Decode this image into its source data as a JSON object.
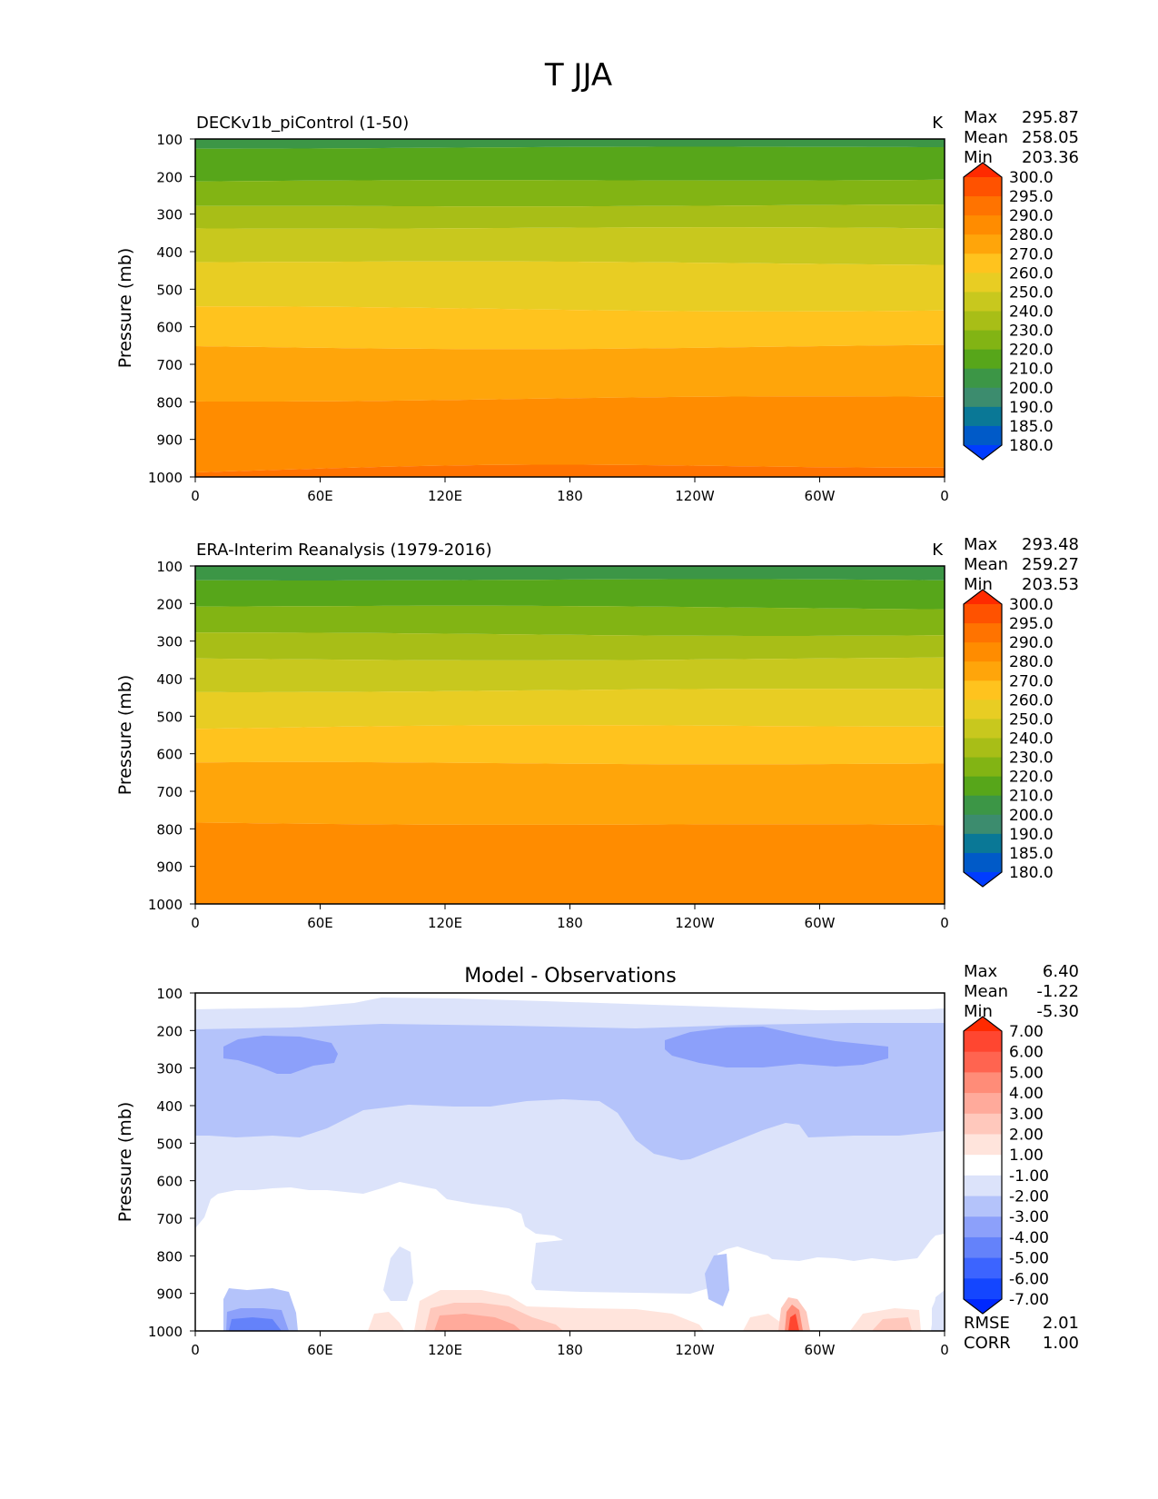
{
  "figure": {
    "title": "T JJA"
  },
  "chart_data": [
    {
      "type": "heatmap",
      "title": "DECKv1b_piControl (1-50)",
      "units": "K",
      "ylabel": "Pressure (mb)",
      "xlabel": "",
      "x_ticks": [
        "0",
        "60E",
        "120E",
        "180",
        "120W",
        "60W",
        "0"
      ],
      "x_range": [
        0,
        360
      ],
      "y_ticks": [
        "100",
        "200",
        "300",
        "400",
        "500",
        "600",
        "700",
        "800",
        "900",
        "1000"
      ],
      "y_range": [
        100,
        1000
      ],
      "y_inverted": true,
      "stats": [
        {
          "label": "Max",
          "value": "295.87"
        },
        {
          "label": "Mean",
          "value": "258.05"
        },
        {
          "label": "Min",
          "value": "203.36"
        }
      ],
      "colorbar": {
        "labels": [
          "300.0",
          "295.0",
          "290.0",
          "280.0",
          "270.0",
          "260.0",
          "250.0",
          "240.0",
          "230.0",
          "220.0",
          "210.0",
          "200.0",
          "190.0",
          "185.0",
          "180.0"
        ],
        "colors": [
          "#ff2a00",
          "#ff5200",
          "#ff7300",
          "#ff8c00",
          "#ffa50a",
          "#ffc31e",
          "#e8cd23",
          "#c8c81e",
          "#a8be17",
          "#82b414",
          "#57a61a",
          "#3c9646",
          "#3c8c6e",
          "#0a7896",
          "#005ac8",
          "#003cff"
        ]
      },
      "levels_top_to_bottom": [
        {
          "from": 100,
          "to": 120,
          "value": 205
        },
        {
          "from": 120,
          "to": 210,
          "value": 215
        },
        {
          "from": 210,
          "to": 280,
          "value": 225
        },
        {
          "from": 280,
          "to": 340,
          "value": 235
        },
        {
          "from": 340,
          "to": 430,
          "value": 245
        },
        {
          "from": 430,
          "to": 550,
          "value": 255
        },
        {
          "from": 550,
          "to": 650,
          "value": 265
        },
        {
          "from": 650,
          "to": 790,
          "value": 275
        },
        {
          "from": 790,
          "to": 980,
          "value": 285
        },
        {
          "from": 980,
          "to": 1000,
          "value": 292
        }
      ]
    },
    {
      "type": "heatmap",
      "title": "ERA-Interim Reanalysis (1979-2016)",
      "units": "K",
      "ylabel": "Pressure (mb)",
      "xlabel": "",
      "x_ticks": [
        "0",
        "60E",
        "120E",
        "180",
        "120W",
        "60W",
        "0"
      ],
      "x_range": [
        0,
        360
      ],
      "y_ticks": [
        "100",
        "200",
        "300",
        "400",
        "500",
        "600",
        "700",
        "800",
        "900",
        "1000"
      ],
      "y_range": [
        100,
        1000
      ],
      "y_inverted": true,
      "stats": [
        {
          "label": "Max",
          "value": "293.48"
        },
        {
          "label": "Mean",
          "value": "259.27"
        },
        {
          "label": "Min",
          "value": "203.53"
        }
      ],
      "colorbar": {
        "labels": [
          "300.0",
          "295.0",
          "290.0",
          "280.0",
          "270.0",
          "260.0",
          "250.0",
          "240.0",
          "230.0",
          "220.0",
          "210.0",
          "200.0",
          "190.0",
          "185.0",
          "180.0"
        ],
        "colors": [
          "#ff2a00",
          "#ff5200",
          "#ff7300",
          "#ff8c00",
          "#ffa50a",
          "#ffc31e",
          "#e8cd23",
          "#c8c81e",
          "#a8be17",
          "#82b414",
          "#57a61a",
          "#3c9646",
          "#3c8c6e",
          "#0a7896",
          "#005ac8",
          "#003cff"
        ]
      },
      "levels_top_to_bottom": [
        {
          "from": 100,
          "to": 140,
          "value": 205
        },
        {
          "from": 140,
          "to": 210,
          "value": 215
        },
        {
          "from": 210,
          "to": 280,
          "value": 225
        },
        {
          "from": 280,
          "to": 345,
          "value": 235
        },
        {
          "from": 345,
          "to": 430,
          "value": 245
        },
        {
          "from": 430,
          "to": 530,
          "value": 255
        },
        {
          "from": 530,
          "to": 630,
          "value": 265
        },
        {
          "from": 630,
          "to": 790,
          "value": 275
        },
        {
          "from": 790,
          "to": 1000,
          "value": 285
        }
      ]
    },
    {
      "type": "heatmap",
      "title": "Model - Observations",
      "units": "",
      "ylabel": "Pressure (mb)",
      "xlabel": "",
      "x_ticks": [
        "0",
        "60E",
        "120E",
        "180",
        "120W",
        "60W",
        "0"
      ],
      "x_range": [
        0,
        360
      ],
      "y_ticks": [
        "100",
        "200",
        "300",
        "400",
        "500",
        "600",
        "700",
        "800",
        "900",
        "1000"
      ],
      "y_range": [
        100,
        1000
      ],
      "y_inverted": true,
      "stats": [
        {
          "label": "Max",
          "value": "6.40"
        },
        {
          "label": "Mean",
          "value": "-1.22"
        },
        {
          "label": "Min",
          "value": "-5.30"
        }
      ],
      "stats_bottom": [
        {
          "label": "RMSE",
          "value": "2.01"
        },
        {
          "label": "CORR",
          "value": "1.00"
        }
      ],
      "colorbar": {
        "labels": [
          "7.00",
          "6.00",
          "5.00",
          "4.00",
          "3.00",
          "2.00",
          "1.00",
          "-1.00",
          "-2.00",
          "-3.00",
          "-4.00",
          "-5.00",
          "-6.00",
          "-7.00"
        ],
        "colors": [
          "#ff2a00",
          "#ff4630",
          "#ff6450",
          "#ff8c78",
          "#ffaa9b",
          "#ffc8bc",
          "#ffe4dc",
          "#ffffff",
          "#dce3fa",
          "#b4c3fa",
          "#8ca0fa",
          "#6482fa",
          "#3c64ff",
          "#1446ff",
          "#0028ff"
        ]
      }
    }
  ]
}
